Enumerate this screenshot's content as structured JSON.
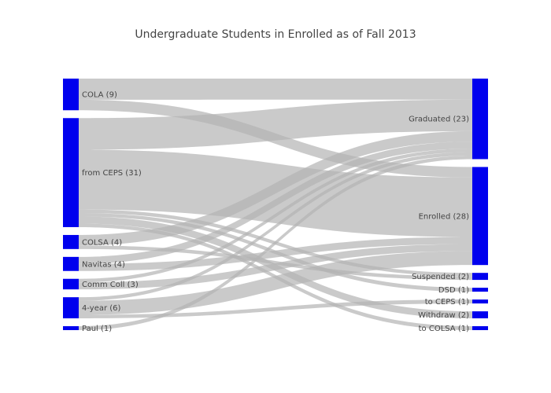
{
  "chart_data": {
    "type": "sankey",
    "title": "Undergraduate Students in Enrolled as of Fall 2013",
    "node_color": "#0000ee",
    "link_color": "#b4b4b4",
    "sources": [
      {
        "id": "COLA",
        "label": "COLA (9)",
        "value": 9
      },
      {
        "id": "CEPS",
        "label": "from CEPS (31)",
        "value": 31
      },
      {
        "id": "COLSA",
        "label": "COLSA (4)",
        "value": 4
      },
      {
        "id": "Navitas",
        "label": "Navitas (4)",
        "value": 4
      },
      {
        "id": "CommColl",
        "label": "Comm Coll (3)",
        "value": 3
      },
      {
        "id": "4year",
        "label": "4-year (6)",
        "value": 6
      },
      {
        "id": "Paul",
        "label": "Paul (1)",
        "value": 1
      }
    ],
    "targets": [
      {
        "id": "Graduated",
        "label": "Graduated (23)",
        "value": 23
      },
      {
        "id": "Enrolled",
        "label": "Enrolled (28)",
        "value": 28
      },
      {
        "id": "Suspended",
        "label": "Suspended (2)",
        "value": 2
      },
      {
        "id": "DSD",
        "label": "DSD (1)",
        "value": 1
      },
      {
        "id": "toCEPS",
        "label": "to CEPS (1)",
        "value": 1
      },
      {
        "id": "Withdraw",
        "label": "Withdraw (2)",
        "value": 2
      },
      {
        "id": "toCOLSA",
        "label": "to COLSA (1)",
        "value": 1
      }
    ],
    "links": [
      {
        "source": "COLA",
        "target": "Graduated",
        "value": 6
      },
      {
        "source": "COLA",
        "target": "Enrolled",
        "value": 3
      },
      {
        "source": "CEPS",
        "target": "Graduated",
        "value": 9
      },
      {
        "source": "CEPS",
        "target": "Enrolled",
        "value": 17
      },
      {
        "source": "CEPS",
        "target": "Suspended",
        "value": 1
      },
      {
        "source": "CEPS",
        "target": "DSD",
        "value": 1
      },
      {
        "source": "CEPS",
        "target": "Withdraw",
        "value": 2
      },
      {
        "source": "CEPS",
        "target": "toCOLSA",
        "value": 1
      },
      {
        "source": "COLSA",
        "target": "Graduated",
        "value": 3
      },
      {
        "source": "COLSA",
        "target": "Suspended",
        "value": 1
      },
      {
        "source": "Navitas",
        "target": "Graduated",
        "value": 2
      },
      {
        "source": "Navitas",
        "target": "Enrolled",
        "value": 2
      },
      {
        "source": "CommColl",
        "target": "Graduated",
        "value": 1
      },
      {
        "source": "CommColl",
        "target": "Enrolled",
        "value": 2
      },
      {
        "source": "4year",
        "target": "Graduated",
        "value": 1
      },
      {
        "source": "4year",
        "target": "Enrolled",
        "value": 4
      },
      {
        "source": "4year",
        "target": "toCEPS",
        "value": 1
      },
      {
        "source": "Paul",
        "target": "Graduated",
        "value": 1
      }
    ]
  }
}
